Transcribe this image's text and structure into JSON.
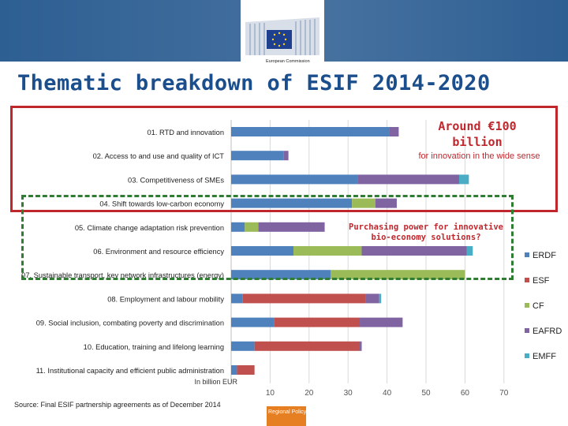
{
  "header": {
    "logo_text": "European Commission",
    "title": "Thematic breakdown of ESIF 2014-2020"
  },
  "annotations": {
    "innovation_headline": "Around €100 billion",
    "innovation_sub": "for innovation in the wide sense",
    "bioeconomy_question": "Purchasing power for innovative bio-economy solutions?"
  },
  "footer": {
    "source": "Source: Final ESIF partnership agreements as of December 2014",
    "regional_policy": "Regional Policy"
  },
  "colors": {
    "banner": "#2e5f93",
    "title": "#1b4e8c",
    "highlight_red": "#c0272d",
    "highlight_green": "#2e7d32",
    "regional_policy": "#e67e22"
  },
  "chart_data": {
    "type": "bar",
    "orientation": "horizontal",
    "stacked": true,
    "unit_label": "In billion EUR",
    "xlim": [
      0,
      70
    ],
    "xticks": [
      10,
      20,
      30,
      40,
      50,
      60,
      70
    ],
    "grid": true,
    "legend_position": "right",
    "categories": [
      "01. RTD and innovation",
      "02. Access to and use and quality of ICT",
      "03. Competitiveness of SMEs",
      "04. Shift towards low-carbon economy",
      "05. Climate change adaptation risk prevention",
      "06. Environment and resource efficiency",
      "07. Sustainable transport, key network infrastructures (energy)",
      "08. Employment and labour mobility",
      "09. Social inclusion, combating poverty and discrimination",
      "10. Education, training and lifelong learning",
      "11. Institutional capacity and efficient public administration"
    ],
    "series": [
      {
        "name": "ERDF",
        "color": "#4f81bd",
        "values": [
          40.5,
          13.5,
          32.5,
          31.0,
          3.5,
          16.0,
          25.5,
          3.0,
          11.0,
          6.0,
          1.5
        ]
      },
      {
        "name": "ESF",
        "color": "#c0504d",
        "values": [
          0.0,
          0.0,
          0.0,
          0.0,
          0.0,
          0.0,
          0.0,
          31.5,
          22.0,
          27.0,
          4.5
        ]
      },
      {
        "name": "CF",
        "color": "#9bbb59",
        "values": [
          0.0,
          0.0,
          0.0,
          6.0,
          3.5,
          17.5,
          34.5,
          0.0,
          0.0,
          0.0,
          0.0
        ]
      },
      {
        "name": "EAFRD",
        "color": "#8064a2",
        "values": [
          2.5,
          1.2,
          26.0,
          5.5,
          17.0,
          27.0,
          0.0,
          3.5,
          11.0,
          0.5,
          0.0
        ]
      },
      {
        "name": "EMFF",
        "color": "#4bacc6",
        "values": [
          0.0,
          0.0,
          2.5,
          0.0,
          0.0,
          1.5,
          0.0,
          0.5,
          0.0,
          0.0,
          0.0
        ]
      }
    ]
  }
}
